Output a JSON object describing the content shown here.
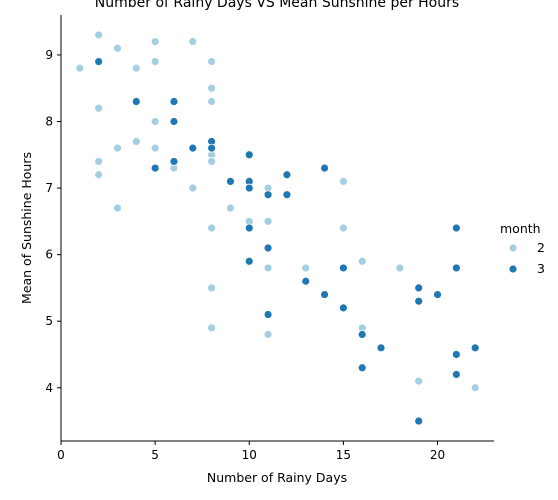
{
  "chart_data": {
    "type": "scatter",
    "title": "Number of Rainy Days VS Mean Sunshine per Hours",
    "xlabel": "Number of Rainy Days",
    "ylabel": "Mean of Sunshine Hours",
    "xlim": [
      0,
      23
    ],
    "ylim": [
      3.2,
      9.6
    ],
    "xticks": [
      0,
      5,
      10,
      15,
      20
    ],
    "yticks": [
      4,
      5,
      6,
      7,
      8,
      9
    ],
    "grid": false,
    "legend": {
      "title": "month",
      "placement": "right"
    },
    "series": [
      {
        "name": "2",
        "color": "#a6cee3",
        "points": [
          [
            1,
            8.8
          ],
          [
            2,
            9.3
          ],
          [
            2,
            8.9
          ],
          [
            2,
            8.2
          ],
          [
            2,
            7.4
          ],
          [
            2,
            7.2
          ],
          [
            3,
            9.1
          ],
          [
            3,
            7.6
          ],
          [
            3,
            6.7
          ],
          [
            4,
            8.8
          ],
          [
            4,
            7.7
          ],
          [
            5,
            9.2
          ],
          [
            5,
            8.9
          ],
          [
            5,
            8.0
          ],
          [
            5,
            7.6
          ],
          [
            6,
            7.3
          ],
          [
            7,
            9.2
          ],
          [
            7,
            7.0
          ],
          [
            8,
            8.9
          ],
          [
            8,
            8.5
          ],
          [
            8,
            8.3
          ],
          [
            8,
            7.5
          ],
          [
            8,
            7.4
          ],
          [
            8,
            6.4
          ],
          [
            8,
            5.5
          ],
          [
            8,
            4.9
          ],
          [
            9,
            6.7
          ],
          [
            10,
            6.5
          ],
          [
            11,
            7.0
          ],
          [
            11,
            6.5
          ],
          [
            11,
            5.8
          ],
          [
            11,
            4.8
          ],
          [
            13,
            5.8
          ],
          [
            15,
            7.1
          ],
          [
            15,
            6.4
          ],
          [
            16,
            5.9
          ],
          [
            16,
            4.9
          ],
          [
            18,
            5.8
          ],
          [
            19,
            4.1
          ],
          [
            22,
            4.0
          ]
        ]
      },
      {
        "name": "3",
        "color": "#1f78b4",
        "points": [
          [
            2,
            8.9
          ],
          [
            4,
            8.3
          ],
          [
            5,
            7.3
          ],
          [
            6,
            8.3
          ],
          [
            6,
            8.0
          ],
          [
            6,
            7.4
          ],
          [
            7,
            7.6
          ],
          [
            8,
            7.7
          ],
          [
            8,
            7.6
          ],
          [
            9,
            7.1
          ],
          [
            10,
            7.5
          ],
          [
            10,
            7.1
          ],
          [
            10,
            7.0
          ],
          [
            10,
            6.4
          ],
          [
            10,
            5.9
          ],
          [
            11,
            6.9
          ],
          [
            11,
            6.1
          ],
          [
            11,
            5.1
          ],
          [
            12,
            7.2
          ],
          [
            12,
            6.9
          ],
          [
            13,
            5.6
          ],
          [
            14,
            7.3
          ],
          [
            14,
            5.4
          ],
          [
            15,
            5.8
          ],
          [
            15,
            5.2
          ],
          [
            16,
            4.8
          ],
          [
            16,
            4.3
          ],
          [
            17,
            4.6
          ],
          [
            19,
            5.5
          ],
          [
            19,
            5.3
          ],
          [
            19,
            3.5
          ],
          [
            20,
            5.4
          ],
          [
            21,
            6.4
          ],
          [
            21,
            5.8
          ],
          [
            21,
            4.5
          ],
          [
            21,
            4.2
          ],
          [
            22,
            4.6
          ]
        ]
      }
    ]
  }
}
